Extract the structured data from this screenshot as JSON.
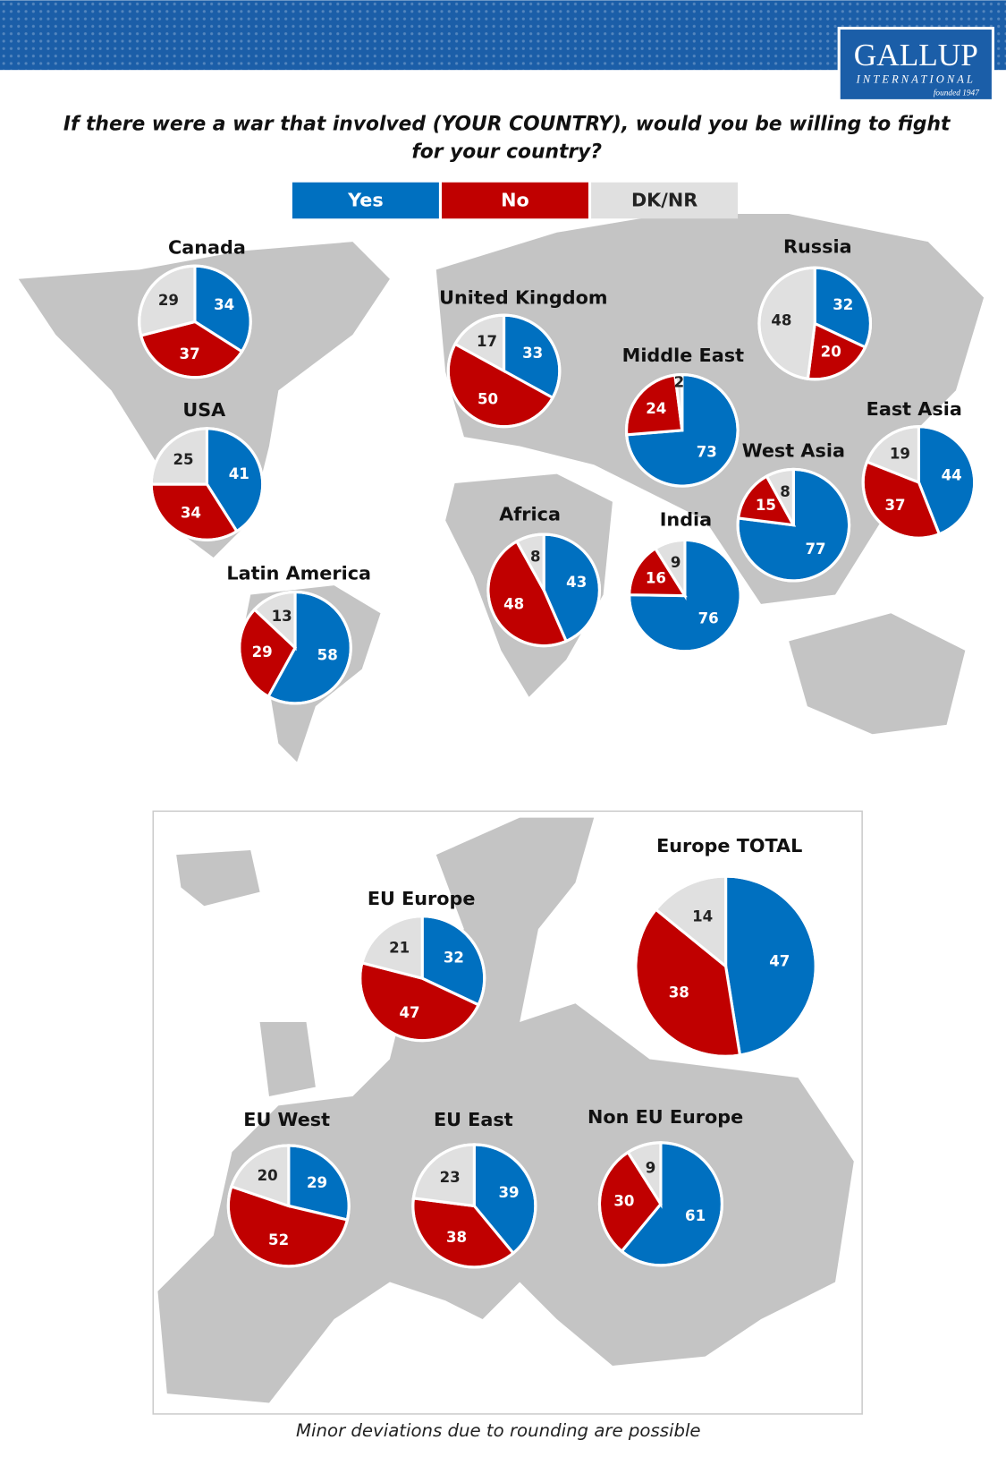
{
  "header": {
    "logo": "GALLUP",
    "logo_sub": "INTERNATIONAL",
    "founded": "founded 1947"
  },
  "title": [
    "If there were a war that involved (YOUR COUNTRY), would you be willing to fight",
    "for your country?"
  ],
  "legend": {
    "labels": [
      "Yes",
      "No",
      "DK/NR"
    ],
    "colors": [
      "#0070c0",
      "#c00000",
      "#e0e0e0"
    ]
  },
  "chart_data": [
    {
      "type": "pie",
      "title": "Canada",
      "values": [
        34,
        37,
        29
      ]
    },
    {
      "type": "pie",
      "title": "United Kingdom",
      "values": [
        33,
        50,
        17
      ]
    },
    {
      "type": "pie",
      "title": "Russia",
      "values": [
        32,
        20,
        48
      ]
    },
    {
      "type": "pie",
      "title": "Middle East",
      "values": [
        73,
        24,
        2
      ]
    },
    {
      "type": "pie",
      "title": "East Asia",
      "values": [
        44,
        37,
        19
      ]
    },
    {
      "type": "pie",
      "title": "USA",
      "values": [
        41,
        34,
        25
      ]
    },
    {
      "type": "pie",
      "title": "West Asia",
      "values": [
        77,
        15,
        8
      ]
    },
    {
      "type": "pie",
      "title": "Africa",
      "values": [
        43,
        48,
        8
      ]
    },
    {
      "type": "pie",
      "title": "India",
      "values": [
        76,
        16,
        9
      ]
    },
    {
      "type": "pie",
      "title": "Latin America",
      "values": [
        58,
        29,
        13
      ]
    },
    {
      "type": "pie",
      "title": "Europe TOTAL",
      "values": [
        47,
        38,
        14
      ]
    },
    {
      "type": "pie",
      "title": "EU Europe",
      "values": [
        32,
        47,
        21
      ]
    },
    {
      "type": "pie",
      "title": "EU West",
      "values": [
        29,
        52,
        20
      ]
    },
    {
      "type": "pie",
      "title": "EU East",
      "values": [
        39,
        38,
        23
      ]
    },
    {
      "type": "pie",
      "title": "Non EU Europe",
      "values": [
        61,
        30,
        9
      ]
    }
  ],
  "footnote": "Minor deviations due to rounding are possible"
}
